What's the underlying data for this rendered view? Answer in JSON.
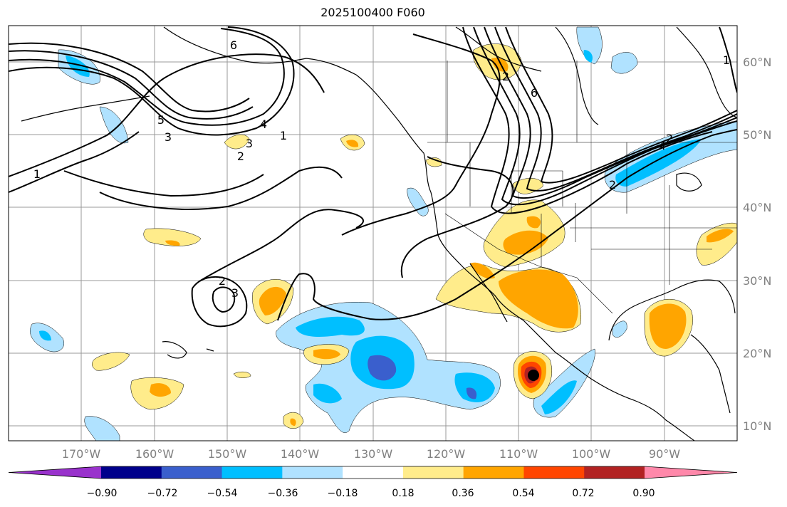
{
  "title": "2025100400 F060",
  "lat_labels": [
    "60°N",
    "50°N",
    "40°N",
    "30°N",
    "20°N",
    "10°N"
  ],
  "lon_labels": [
    "170°W",
    "160°W",
    "150°W",
    "140°W",
    "130°W",
    "120°W",
    "110°W",
    "100°W",
    "90°W"
  ],
  "colorbar": {
    "ticks": [
      "−0.90",
      "−0.72",
      "−0.54",
      "−0.36",
      "−0.18",
      "0.18",
      "0.36",
      "0.54",
      "0.72",
      "0.90"
    ],
    "colors": [
      "#9932cc",
      "#00008b",
      "#3a5fcd",
      "#00bfff",
      "#b0e2ff",
      "#ffffff",
      "#ffec8b",
      "#ffa500",
      "#ff4500",
      "#b22222",
      "#ff88aa"
    ]
  },
  "contour_labels": [
    "6",
    "5",
    "4",
    "3",
    "2",
    "1",
    "1",
    "2",
    "3",
    "2",
    "6",
    "2",
    "2",
    "4",
    "1",
    "3"
  ],
  "storm_marker": "black-dot"
}
